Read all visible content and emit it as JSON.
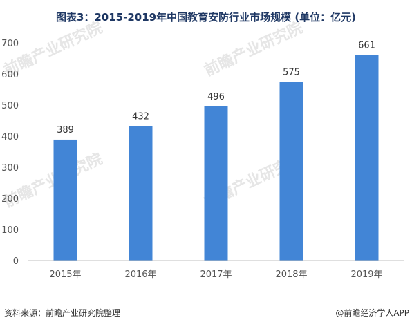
{
  "chart_data": {
    "type": "bar",
    "title": "图表3：2015-2019年中国教育安防行业市场规模 (单位：亿元)",
    "categories": [
      "2015年",
      "2016年",
      "2017年",
      "2018年",
      "2019年"
    ],
    "values": [
      389,
      432,
      496,
      575,
      661
    ],
    "ylim": [
      0,
      700
    ],
    "yticks": [
      0,
      100,
      200,
      300,
      400,
      500,
      600,
      700
    ],
    "xlabel": "",
    "ylabel": "",
    "grid": false,
    "bar_color": "#4285d6"
  },
  "footer": {
    "source": "资料来源：前瞻产业研究院整理",
    "credit": "@前瞻经济学人APP"
  },
  "watermark": {
    "text": "前瞻产业研究院"
  }
}
